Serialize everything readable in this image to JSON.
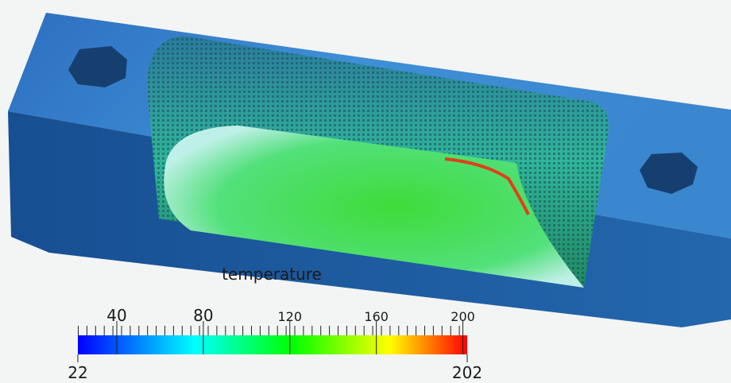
{
  "colorbar": {
    "title": "temperature",
    "range": [
      22,
      202
    ],
    "ticks": [
      40,
      80,
      120,
      160,
      200
    ]
  }
}
